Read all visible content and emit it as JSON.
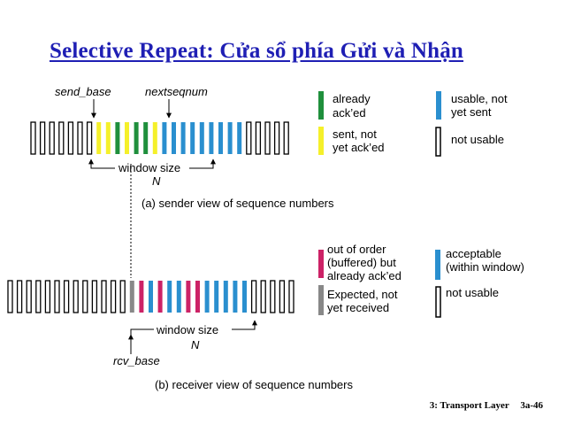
{
  "slide": {
    "title": "Selective Repeat: Cửa sổ phía Gửi và Nhận",
    "footer_chapter": "3: Transport Layer",
    "footer_page": "3a-46"
  },
  "sender": {
    "send_base_label": "send_base",
    "nextseqnum_label": "nextseqnum",
    "window_size_label": "window size",
    "n_label": "N",
    "caption": "(a) sender view of sequence numbers",
    "boxes": [
      "o",
      "o",
      "o",
      "o",
      "o",
      "o",
      "o",
      "y",
      "y",
      "g",
      "y",
      "g",
      "g",
      "y",
      "b",
      "b",
      "b",
      "b",
      "b",
      "b",
      "b",
      "b",
      "b",
      "o",
      "o",
      "o",
      "o",
      "o"
    ],
    "legend": {
      "green": "already ack’ed",
      "yellow": "sent, not yet ack’ed",
      "blue": "usable, not yet sent",
      "outline": "not usable"
    }
  },
  "receiver": {
    "rcv_base_label": "rcv_base",
    "window_size_label": "window size",
    "n_label": "N",
    "caption": "(b) receiver view of sequence numbers",
    "boxes": [
      "o",
      "o",
      "o",
      "o",
      "o",
      "o",
      "o",
      "o",
      "o",
      "o",
      "o",
      "o",
      "o",
      "gr",
      "m",
      "b",
      "m",
      "b",
      "b",
      "m",
      "m",
      "b",
      "b",
      "b",
      "b",
      "b",
      "o",
      "o",
      "o",
      "o",
      "o"
    ],
    "legend": {
      "magenta": "out of order (buffered) but already ack’ed",
      "gray": "Expected, not yet received",
      "blue": "acceptable (within window)",
      "outline": "not usable"
    }
  },
  "colors": {
    "green": "#1f8f3c",
    "yellow": "#f5f02a",
    "blue": "#2a8fcf",
    "magenta": "#cc2266",
    "gray": "#888888",
    "outline": "#000000",
    "title": "#1f1fb4"
  }
}
